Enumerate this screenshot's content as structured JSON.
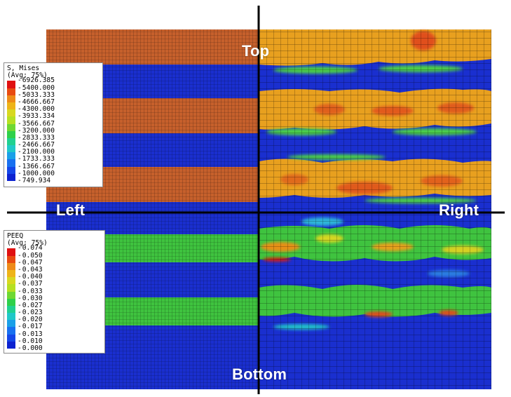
{
  "figure": {
    "quadrant_labels": {
      "top": "Top",
      "left": "Left",
      "right": "Right",
      "bottom": "Bottom"
    },
    "colors": {
      "mesh_blue": "#1a2fcf",
      "stripe_orange": "#c6602c",
      "stripe_green": "#3fc33f",
      "mesh_yellow_orange": "#e8a01f",
      "axis_line": "#000000"
    }
  },
  "legends": {
    "mises": {
      "title_line1": "S, Mises",
      "title_line2": "(Avg: 75%)",
      "values": [
        "6926.385",
        "5400.000",
        "5033.333",
        "4666.667",
        "4300.000",
        "3933.334",
        "3566.667",
        "3200.000",
        "2833.333",
        "2466.667",
        "2100.000",
        "1733.333",
        "1366.667",
        "1000.000",
        "749.934"
      ],
      "colors": [
        "#e01010",
        "#e84a10",
        "#ee8a18",
        "#eeb418",
        "#d8d820",
        "#b6e022",
        "#6ed832",
        "#2ed04a",
        "#20d090",
        "#20c8c8",
        "#1aa0e8",
        "#1870f0",
        "#1446e8",
        "#0c22d0"
      ]
    },
    "peeq": {
      "title_line1": "PEEQ",
      "title_line2": "(Avg: 75%)",
      "values": [
        "0.074",
        "0.050",
        "0.047",
        "0.043",
        "0.040",
        "0.037",
        "0.033",
        "0.030",
        "0.027",
        "0.023",
        "0.020",
        "0.017",
        "0.013",
        "0.010",
        "0.000"
      ],
      "colors": [
        "#e01010",
        "#e84a10",
        "#ee8a18",
        "#eeb418",
        "#d8d820",
        "#b6e022",
        "#6ed832",
        "#2ed04a",
        "#20d090",
        "#20c8c8",
        "#1aa0e8",
        "#1870f0",
        "#1446e8",
        "#0c22d0"
      ]
    }
  }
}
